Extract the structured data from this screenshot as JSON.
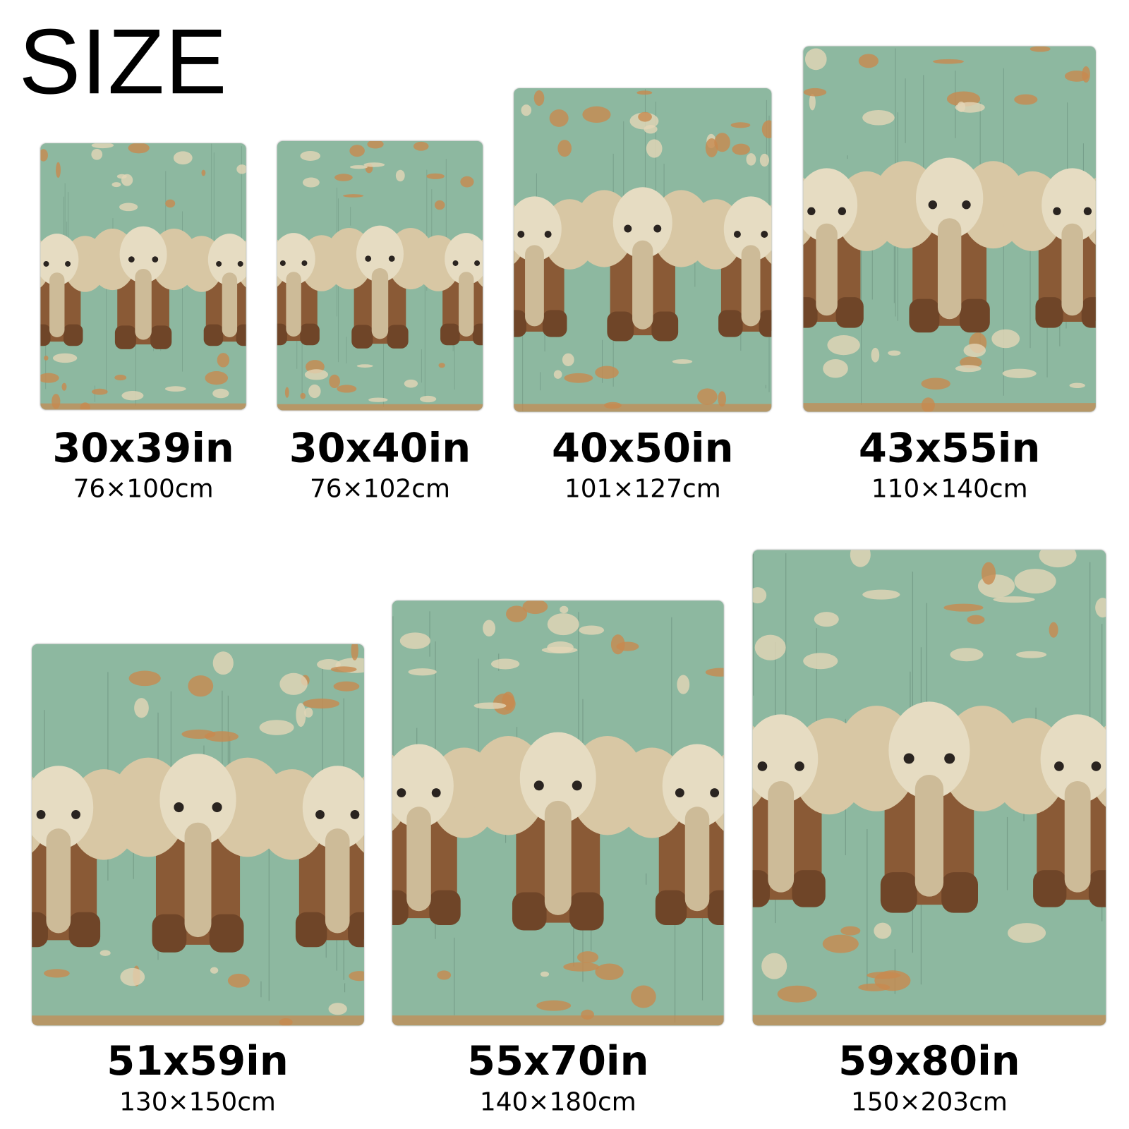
{
  "title": "SIZE",
  "sizes": [
    {
      "inches": "30x39in",
      "cm": "76×100cm"
    },
    {
      "inches": "30x40in",
      "cm": "76×102cm"
    },
    {
      "inches": "40x50in",
      "cm": "101×127cm"
    },
    {
      "inches": "43x55in",
      "cm": "110×140cm"
    },
    {
      "inches": "51x59in",
      "cm": "130×150cm"
    },
    {
      "inches": "55x70in",
      "cm": "140×180cm"
    },
    {
      "inches": "59x80in",
      "cm": "150×203cm"
    }
  ],
  "colors": {
    "background": "#8db8a0",
    "rust": "#c8894f",
    "elephant_head": "#e6dcc2",
    "elephant_body": "#8a5a36"
  }
}
